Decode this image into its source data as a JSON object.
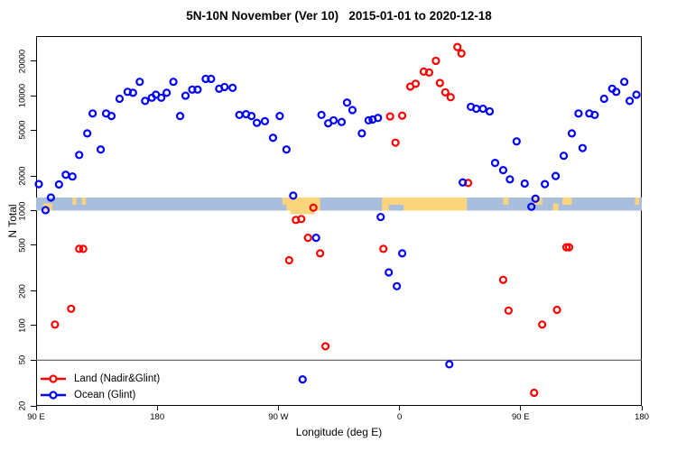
{
  "chart_data": {
    "type": "scatter",
    "title": "5N-10N November (Ver 10)   2015-01-01 to 2020-12-18",
    "xlabel": "Longitude (deg E)",
    "ylabel": "N Total",
    "x_axis": {
      "min": 90,
      "max": 540,
      "ticks": [
        {
          "value": 90,
          "label": "90 E"
        },
        {
          "value": 180,
          "label": "180"
        },
        {
          "value": 270,
          "label": "90 W"
        },
        {
          "value": 360,
          "label": "0"
        },
        {
          "value": 450,
          "label": "90 E"
        },
        {
          "value": 540,
          "label": "180"
        }
      ]
    },
    "y_axis": {
      "scale": "log",
      "min": 20,
      "max": 33000,
      "ticks": [
        20,
        50,
        100,
        200,
        500,
        1000,
        2000,
        5000,
        10000,
        20000
      ]
    },
    "reference_line": {
      "value": 50,
      "color": "#5a5a5a"
    },
    "geo_band": {
      "value_range": [
        1000,
        1300
      ],
      "ocean_color": "#a9bedc",
      "land_color": "#fbd57c",
      "land_segments": [
        {
          "from": 95,
          "to": 102,
          "coverage": "bottom"
        },
        {
          "from": 117,
          "to": 120,
          "coverage": "top"
        },
        {
          "from": 124,
          "to": 127,
          "coverage": "top"
        },
        {
          "from": 273,
          "to": 276,
          "coverage": "top"
        },
        {
          "from": 276,
          "to": 301,
          "coverage": "full"
        },
        {
          "from": 279,
          "to": 297,
          "coverage": "below"
        },
        {
          "from": 347,
          "to": 352,
          "coverage": "full"
        },
        {
          "from": 352,
          "to": 363,
          "coverage": "top"
        },
        {
          "from": 363,
          "to": 410,
          "coverage": "full"
        },
        {
          "from": 437,
          "to": 441,
          "coverage": "top"
        },
        {
          "from": 459,
          "to": 466,
          "coverage": "top"
        },
        {
          "from": 474,
          "to": 478,
          "coverage": "bottom"
        },
        {
          "from": 481,
          "to": 488,
          "coverage": "top"
        },
        {
          "from": 535,
          "to": 538,
          "coverage": "top"
        }
      ]
    },
    "series": [
      {
        "name": "Land (Nadir&Glint)",
        "color": "#ff0000",
        "points": [
          [
            104,
            102
          ],
          [
            116,
            140
          ],
          [
            122,
            465
          ],
          [
            125,
            465
          ],
          [
            278,
            370
          ],
          [
            283,
            830
          ],
          [
            287,
            845
          ],
          [
            292,
            580
          ],
          [
            296,
            1060
          ],
          [
            301,
            425
          ],
          [
            305,
            66
          ],
          [
            348,
            465
          ],
          [
            353,
            6600
          ],
          [
            357,
            3900
          ],
          [
            362,
            6700
          ],
          [
            368,
            12000
          ],
          [
            372,
            12700
          ],
          [
            378,
            16200
          ],
          [
            382,
            15900
          ],
          [
            387,
            20100
          ],
          [
            390,
            12900
          ],
          [
            394,
            10700
          ],
          [
            398,
            9700
          ],
          [
            403,
            26500
          ],
          [
            406,
            23300
          ],
          [
            411,
            1740
          ],
          [
            437,
            250
          ],
          [
            441,
            135
          ],
          [
            460,
            26
          ],
          [
            466,
            102
          ],
          [
            477,
            137
          ],
          [
            484,
            480
          ],
          [
            486,
            480
          ]
        ]
      },
      {
        "name": "Ocean (Glint)",
        "color": "#0000ff",
        "points": [
          [
            92,
            1700
          ],
          [
            97,
            1010
          ],
          [
            101,
            1300
          ],
          [
            107,
            1690
          ],
          [
            112,
            2050
          ],
          [
            117,
            1980
          ],
          [
            122,
            3050
          ],
          [
            128,
            4700
          ],
          [
            132,
            7000
          ],
          [
            138,
            3400
          ],
          [
            142,
            7000
          ],
          [
            146,
            6650
          ],
          [
            152,
            9400
          ],
          [
            158,
            10800
          ],
          [
            162,
            10600
          ],
          [
            167,
            13200
          ],
          [
            171,
            9000
          ],
          [
            176,
            9600
          ],
          [
            179,
            10200
          ],
          [
            183,
            9600
          ],
          [
            187,
            10600
          ],
          [
            192,
            13200
          ],
          [
            197,
            6650
          ],
          [
            201,
            10000
          ],
          [
            206,
            11300
          ],
          [
            210,
            11300
          ],
          [
            216,
            14000
          ],
          [
            220,
            14000
          ],
          [
            226,
            11500
          ],
          [
            230,
            11900
          ],
          [
            236,
            11700
          ],
          [
            241,
            6800
          ],
          [
            246,
            6900
          ],
          [
            250,
            6650
          ],
          [
            254,
            5800
          ],
          [
            260,
            6000
          ],
          [
            266,
            4300
          ],
          [
            271,
            6650
          ],
          [
            276,
            3400
          ],
          [
            281,
            1350
          ],
          [
            288,
            34
          ],
          [
            298,
            580
          ],
          [
            302,
            6800
          ],
          [
            307,
            5750
          ],
          [
            311,
            6100
          ],
          [
            317,
            5900
          ],
          [
            321,
            8700
          ],
          [
            325,
            7500
          ],
          [
            332,
            4700
          ],
          [
            337,
            6100
          ],
          [
            340,
            6200
          ],
          [
            344,
            6400
          ],
          [
            346,
            880
          ],
          [
            352,
            290
          ],
          [
            358,
            220
          ],
          [
            362,
            425
          ],
          [
            397,
            46
          ],
          [
            407,
            1760
          ],
          [
            413,
            8000
          ],
          [
            417,
            7700
          ],
          [
            422,
            7700
          ],
          [
            427,
            7300
          ],
          [
            431,
            2600
          ],
          [
            437,
            2250
          ],
          [
            442,
            1870
          ],
          [
            447,
            4000
          ],
          [
            453,
            1720
          ],
          [
            458,
            1080
          ],
          [
            461,
            1270
          ],
          [
            468,
            1700
          ],
          [
            476,
            2000
          ],
          [
            482,
            3000
          ],
          [
            488,
            4700
          ],
          [
            493,
            7000
          ],
          [
            496,
            3500
          ],
          [
            501,
            7000
          ],
          [
            505,
            6800
          ],
          [
            512,
            9400
          ],
          [
            518,
            11500
          ],
          [
            521,
            10800
          ],
          [
            527,
            13200
          ],
          [
            531,
            9000
          ],
          [
            536,
            10200
          ]
        ]
      }
    ],
    "legend": {
      "position": "bottom-left",
      "items": [
        {
          "label": "Land (Nadir&Glint)",
          "color": "#ff0000"
        },
        {
          "label": "Ocean (Glint)",
          "color": "#0000ff"
        }
      ]
    },
    "marker": {
      "shape": "open-circle",
      "radius": 3.5,
      "stroke_width": 2.2
    }
  }
}
